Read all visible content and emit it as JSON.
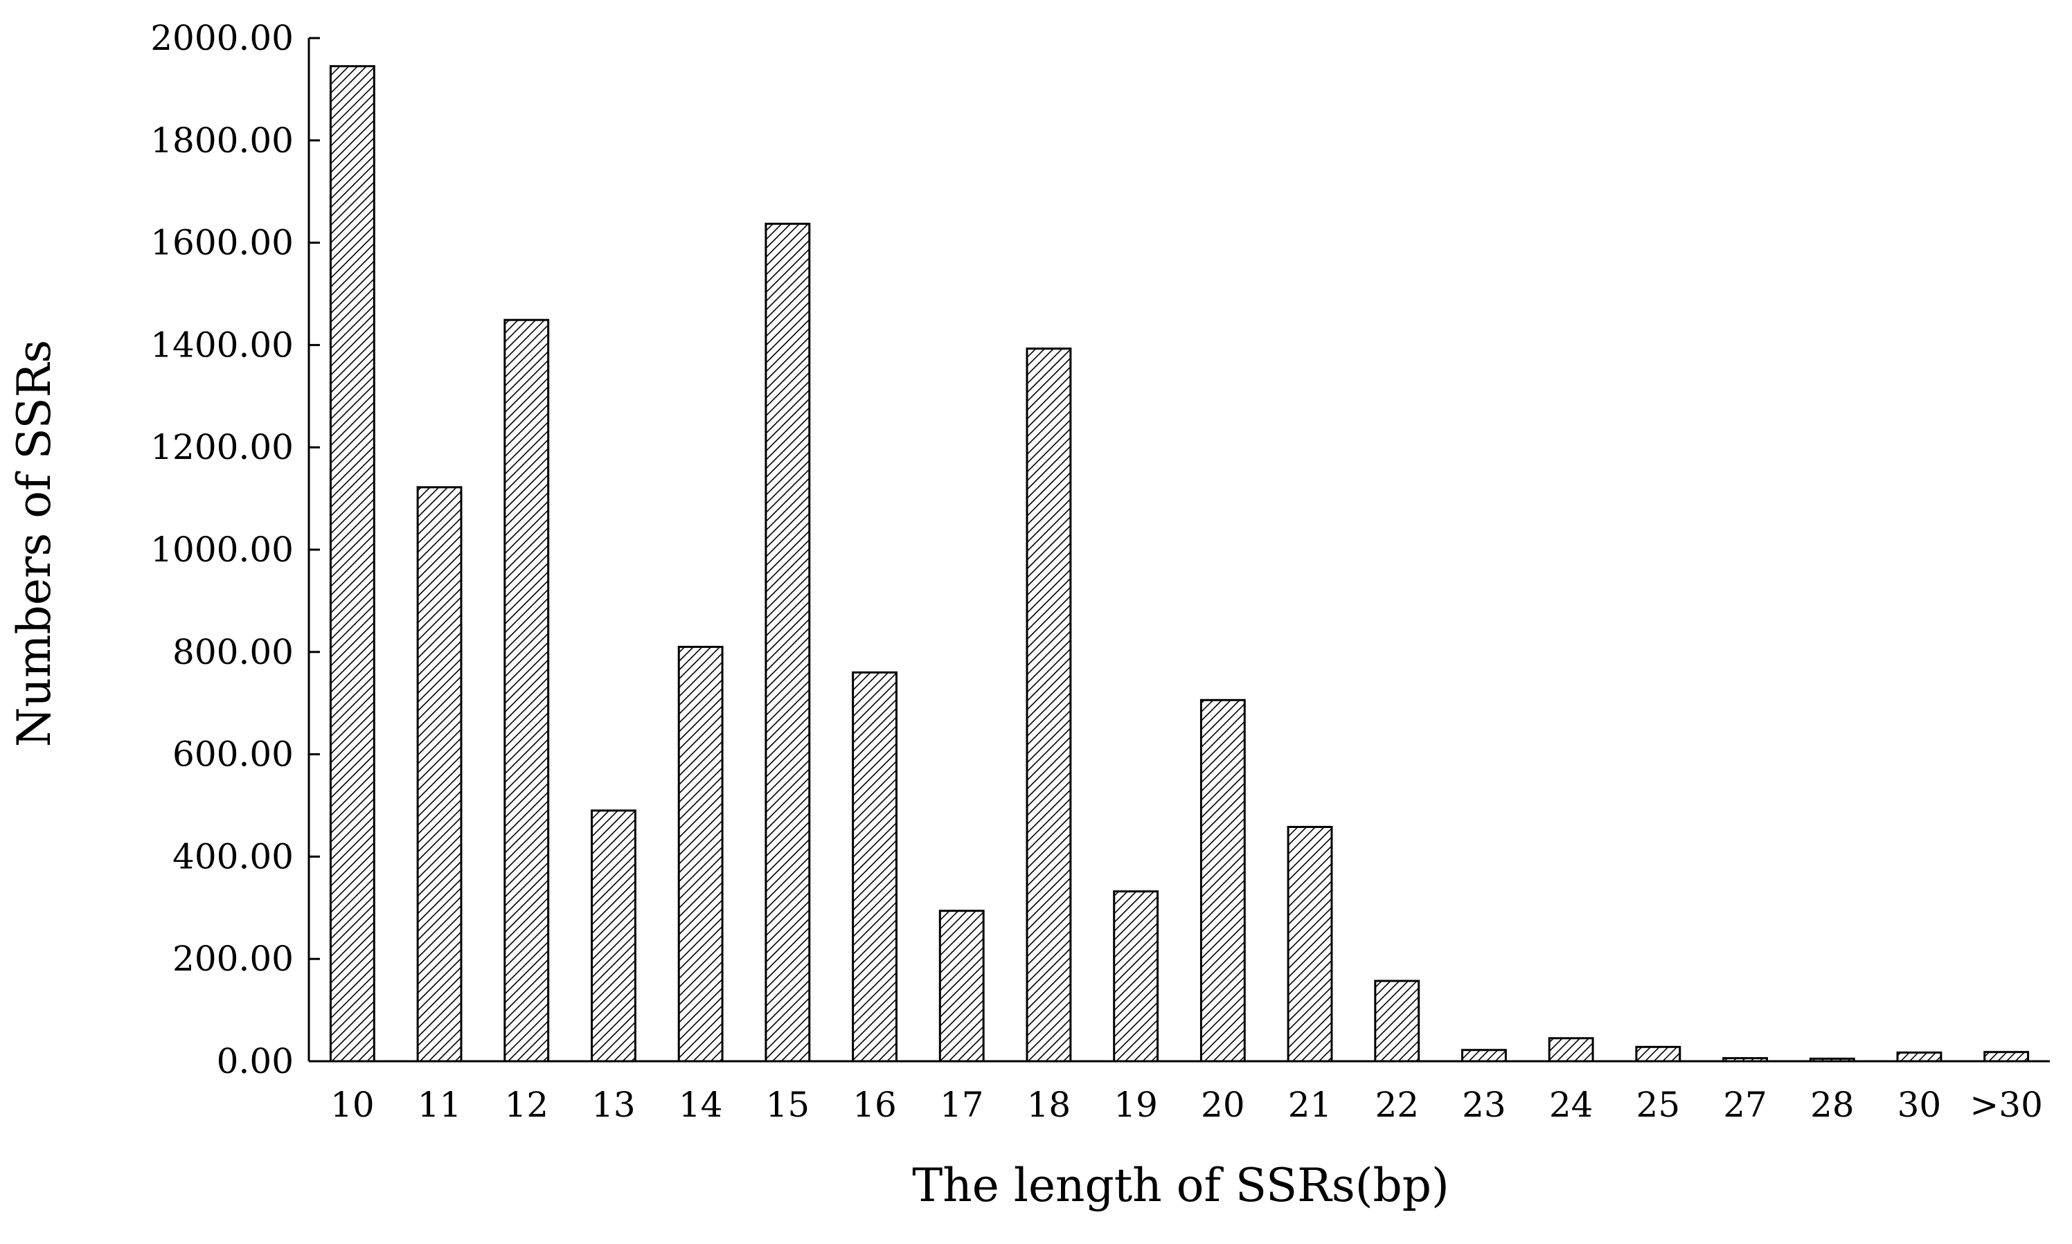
{
  "chart_data": {
    "type": "bar",
    "title": "",
    "xlabel": "The length of SSRs(bp)",
    "ylabel": "Numbers of SSRs",
    "categories": [
      "10",
      "11",
      "12",
      "13",
      "14",
      "15",
      "16",
      "17",
      "18",
      "19",
      "20",
      "21",
      "22",
      "23",
      "24",
      "25",
      "27",
      "28",
      "30",
      ">30"
    ],
    "values": [
      1945,
      1122,
      1449,
      490,
      810,
      1637,
      760,
      294,
      1393,
      332,
      706,
      458,
      157,
      22,
      45,
      28,
      6,
      5,
      17,
      18
    ],
    "ylim": [
      0,
      2000
    ],
    "yticks": [
      "0.00",
      "200.00",
      "400.00",
      "600.00",
      "800.00",
      "1000.00",
      "1200.00",
      "1400.00",
      "1600.00",
      "1800.00",
      "2000.00"
    ],
    "grid": false,
    "legend": "none",
    "bar_fill": "diagonal-hatch",
    "colors": {
      "bar_stroke": "#000000",
      "hatch": "#000000",
      "background": "#ffffff"
    }
  }
}
